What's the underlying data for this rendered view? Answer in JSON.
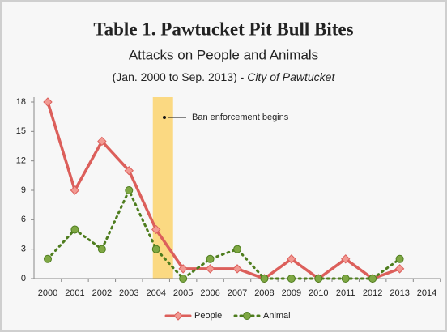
{
  "chart_data": {
    "type": "line",
    "title": "Table 1. Pawtucket Pit Bull Bites",
    "subtitle": "Attacks on People and Animals",
    "period": "(Jan. 2000 to Sep. 2013) - ",
    "source": "City of Pawtucket",
    "annotation": "Ban enforcement begins",
    "categories": [
      "2000",
      "2001",
      "2002",
      "2003",
      "2004",
      "2005",
      "2006",
      "2007",
      "2008",
      "2009",
      "2010",
      "2011",
      "2012",
      "2013",
      "2014"
    ],
    "series": [
      {
        "name": "People",
        "color": "#dc5f5b",
        "values": [
          18,
          9,
          14,
          11,
          5,
          1,
          1,
          1,
          0,
          2,
          0,
          2,
          0,
          1,
          null
        ]
      },
      {
        "name": "Animal",
        "color": "#4e7d1e",
        "values": [
          2,
          5,
          3,
          9,
          3,
          0,
          2,
          3,
          0,
          0,
          0,
          0,
          0,
          2,
          null
        ]
      }
    ],
    "ylim": [
      0,
      18
    ],
    "yticks": [
      0,
      3,
      6,
      9,
      12,
      15,
      18
    ],
    "grid": false,
    "legend": "bottom"
  }
}
